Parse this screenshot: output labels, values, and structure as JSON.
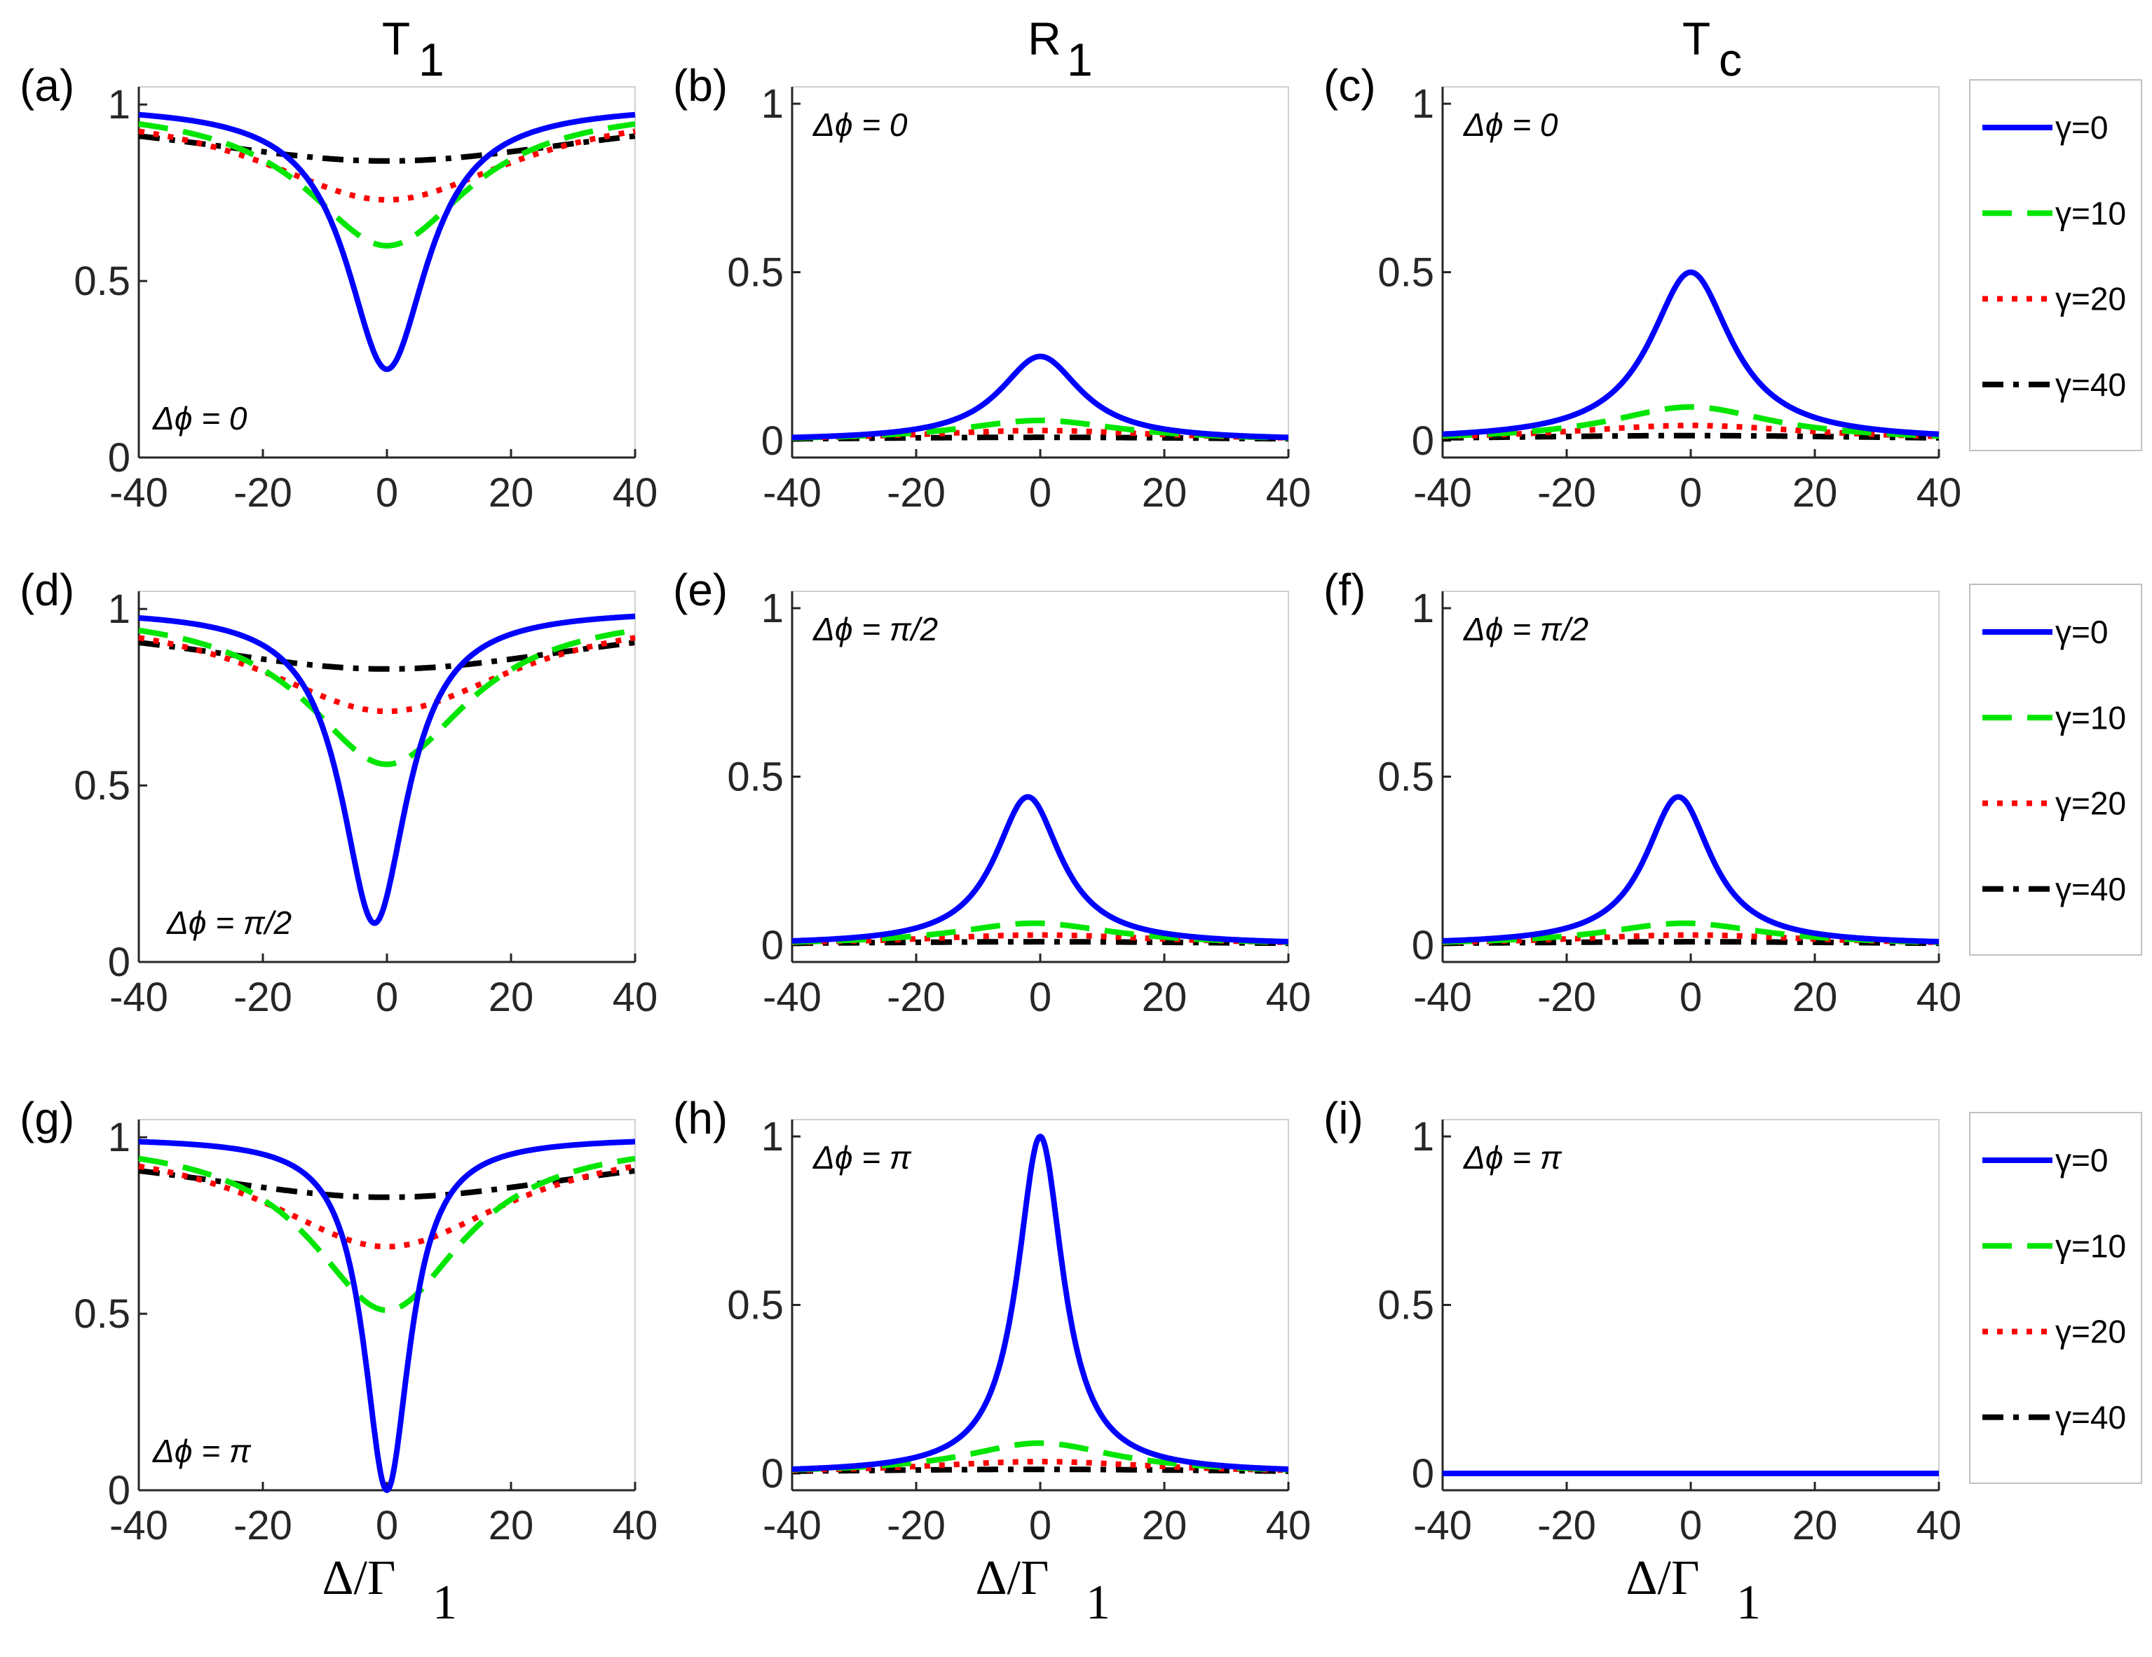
{
  "chart_data": {
    "type": "line",
    "columns": [
      {
        "title": "T",
        "subscript": "1"
      },
      {
        "title": "R",
        "subscript": "1"
      },
      {
        "title": "T",
        "subscript": "c"
      }
    ],
    "xlabel": {
      "main": "Δ/Γ",
      "subscript": "1"
    },
    "xlim": [
      -40,
      40
    ],
    "ylim": [
      0,
      1
    ],
    "x_ticks": [
      "-40",
      "-20",
      "0",
      "20",
      "40"
    ],
    "y_ticks": [
      "0",
      "0.5",
      "1"
    ],
    "legend": {
      "placement": "right of each row",
      "entries": [
        "γ=0",
        "γ=10",
        "γ=20",
        "γ=40"
      ]
    },
    "series_styles": [
      {
        "name": "γ=0",
        "color": "#0000ff",
        "dash": "solid"
      },
      {
        "name": "γ=10",
        "color": "#00e600",
        "dash": "dashed"
      },
      {
        "name": "γ=20",
        "color": "#ff0000",
        "dash": "dotted"
      },
      {
        "name": "γ=40",
        "color": "#000000",
        "dash": "dashdot"
      }
    ],
    "panels": [
      {
        "label": "(a)",
        "quantity": "T1",
        "annotation": "Δϕ = 0",
        "annotation_pos": "bottom-left",
        "series": [
          {
            "name": "γ=0",
            "shape": "dip",
            "base": 1.0,
            "extremum": 0.25,
            "center": 0,
            "width": 8
          },
          {
            "name": "γ=10",
            "shape": "dip",
            "base": 1.0,
            "extremum": 0.6,
            "center": 0,
            "width": 16
          },
          {
            "name": "γ=20",
            "shape": "dip",
            "base": 1.0,
            "extremum": 0.73,
            "center": 0,
            "width": 25
          },
          {
            "name": "γ=40",
            "shape": "dip",
            "base": 1.0,
            "extremum": 0.84,
            "center": 0,
            "width": 45
          }
        ]
      },
      {
        "label": "(b)",
        "quantity": "R1",
        "annotation": "Δϕ = 0",
        "annotation_pos": "top-left",
        "series": [
          {
            "name": "γ=0",
            "shape": "peak",
            "base": 0.0,
            "extremum": 0.25,
            "center": 0,
            "width": 8
          },
          {
            "name": "γ=10",
            "shape": "peak",
            "base": 0.0,
            "extremum": 0.06,
            "center": 0,
            "width": 16
          },
          {
            "name": "γ=20",
            "shape": "peak",
            "base": 0.0,
            "extremum": 0.03,
            "center": 0,
            "width": 25
          },
          {
            "name": "γ=40",
            "shape": "peak",
            "base": 0.0,
            "extremum": 0.01,
            "center": 0,
            "width": 45
          }
        ]
      },
      {
        "label": "(c)",
        "quantity": "Tc",
        "annotation": "Δϕ = 0",
        "annotation_pos": "top-left",
        "series": [
          {
            "name": "γ=0",
            "shape": "peak",
            "base": 0.0,
            "extremum": 0.5,
            "center": 0,
            "width": 8
          },
          {
            "name": "γ=10",
            "shape": "peak",
            "base": 0.0,
            "extremum": 0.1,
            "center": 0,
            "width": 16
          },
          {
            "name": "γ=20",
            "shape": "peak",
            "base": 0.0,
            "extremum": 0.045,
            "center": 0,
            "width": 25
          },
          {
            "name": "γ=40",
            "shape": "peak",
            "base": 0.0,
            "extremum": 0.015,
            "center": 0,
            "width": 45
          }
        ]
      },
      {
        "label": "(d)",
        "quantity": "T1",
        "annotation": "Δϕ = π/2",
        "annotation_pos": "bottom-left",
        "series": [
          {
            "name": "γ=0",
            "shape": "dip",
            "base": 1.0,
            "extremum": 0.11,
            "center": -2,
            "width": 6.5
          },
          {
            "name": "γ=10",
            "shape": "dip",
            "base": 1.0,
            "extremum": 0.56,
            "center": 0,
            "width": 16
          },
          {
            "name": "γ=20",
            "shape": "dip",
            "base": 1.0,
            "extremum": 0.71,
            "center": 0,
            "width": 25
          },
          {
            "name": "γ=40",
            "shape": "dip",
            "base": 1.0,
            "extremum": 0.83,
            "center": 0,
            "width": 45
          }
        ]
      },
      {
        "label": "(e)",
        "quantity": "R1",
        "annotation": "Δϕ = π/2",
        "annotation_pos": "top-left",
        "series": [
          {
            "name": "γ=0",
            "shape": "peak",
            "base": 0.0,
            "extremum": 0.44,
            "center": -2,
            "width": 6.5
          },
          {
            "name": "γ=10",
            "shape": "peak",
            "base": 0.0,
            "extremum": 0.065,
            "center": -1,
            "width": 16
          },
          {
            "name": "γ=20",
            "shape": "peak",
            "base": 0.0,
            "extremum": 0.03,
            "center": 0,
            "width": 25
          },
          {
            "name": "γ=40",
            "shape": "peak",
            "base": 0.0,
            "extremum": 0.01,
            "center": 0,
            "width": 45
          }
        ]
      },
      {
        "label": "(f)",
        "quantity": "Tc",
        "annotation": "Δϕ = π/2",
        "annotation_pos": "top-left",
        "series": [
          {
            "name": "γ=0",
            "shape": "peak",
            "base": 0.0,
            "extremum": 0.44,
            "center": -2,
            "width": 6.5
          },
          {
            "name": "γ=10",
            "shape": "peak",
            "base": 0.0,
            "extremum": 0.065,
            "center": -1,
            "width": 16
          },
          {
            "name": "γ=20",
            "shape": "peak",
            "base": 0.0,
            "extremum": 0.03,
            "center": 0,
            "width": 25
          },
          {
            "name": "γ=40",
            "shape": "peak",
            "base": 0.0,
            "extremum": 0.01,
            "center": 0,
            "width": 45
          }
        ]
      },
      {
        "label": "(g)",
        "quantity": "T1",
        "annotation": "Δϕ = π",
        "annotation_pos": "bottom-left",
        "series": [
          {
            "name": "γ=0",
            "shape": "dip",
            "base": 1.0,
            "extremum": 0.0,
            "center": 0,
            "width": 4.5
          },
          {
            "name": "γ=10",
            "shape": "dip",
            "base": 1.0,
            "extremum": 0.51,
            "center": 0,
            "width": 15
          },
          {
            "name": "γ=20",
            "shape": "dip",
            "base": 1.0,
            "extremum": 0.69,
            "center": 0,
            "width": 24
          },
          {
            "name": "γ=40",
            "shape": "dip",
            "base": 1.0,
            "extremum": 0.83,
            "center": 0,
            "width": 45
          }
        ]
      },
      {
        "label": "(h)",
        "quantity": "R1",
        "annotation": "Δϕ = π",
        "annotation_pos": "top-left",
        "series": [
          {
            "name": "γ=0",
            "shape": "peak",
            "base": 0.0,
            "extremum": 1.0,
            "center": 0,
            "width": 4.5
          },
          {
            "name": "γ=10",
            "shape": "peak",
            "base": 0.0,
            "extremum": 0.09,
            "center": 0,
            "width": 15
          },
          {
            "name": "γ=20",
            "shape": "peak",
            "base": 0.0,
            "extremum": 0.035,
            "center": 0,
            "width": 24
          },
          {
            "name": "γ=40",
            "shape": "peak",
            "base": 0.0,
            "extremum": 0.012,
            "center": 0,
            "width": 45
          }
        ]
      },
      {
        "label": "(i)",
        "quantity": "Tc",
        "annotation": "Δϕ = π",
        "annotation_pos": "top-left",
        "series": [
          {
            "name": "γ=0",
            "shape": "flat",
            "base": 0.0,
            "extremum": 0.0,
            "center": 0,
            "width": 1
          },
          {
            "name": "γ=10",
            "shape": "flat",
            "base": 0.0,
            "extremum": 0.0,
            "center": 0,
            "width": 1
          },
          {
            "name": "γ=20",
            "shape": "flat",
            "base": 0.0,
            "extremum": 0.0,
            "center": 0,
            "width": 1
          },
          {
            "name": "γ=40",
            "shape": "flat",
            "base": 0.0,
            "extremum": 0.0,
            "center": 0,
            "width": 1
          }
        ]
      }
    ]
  }
}
